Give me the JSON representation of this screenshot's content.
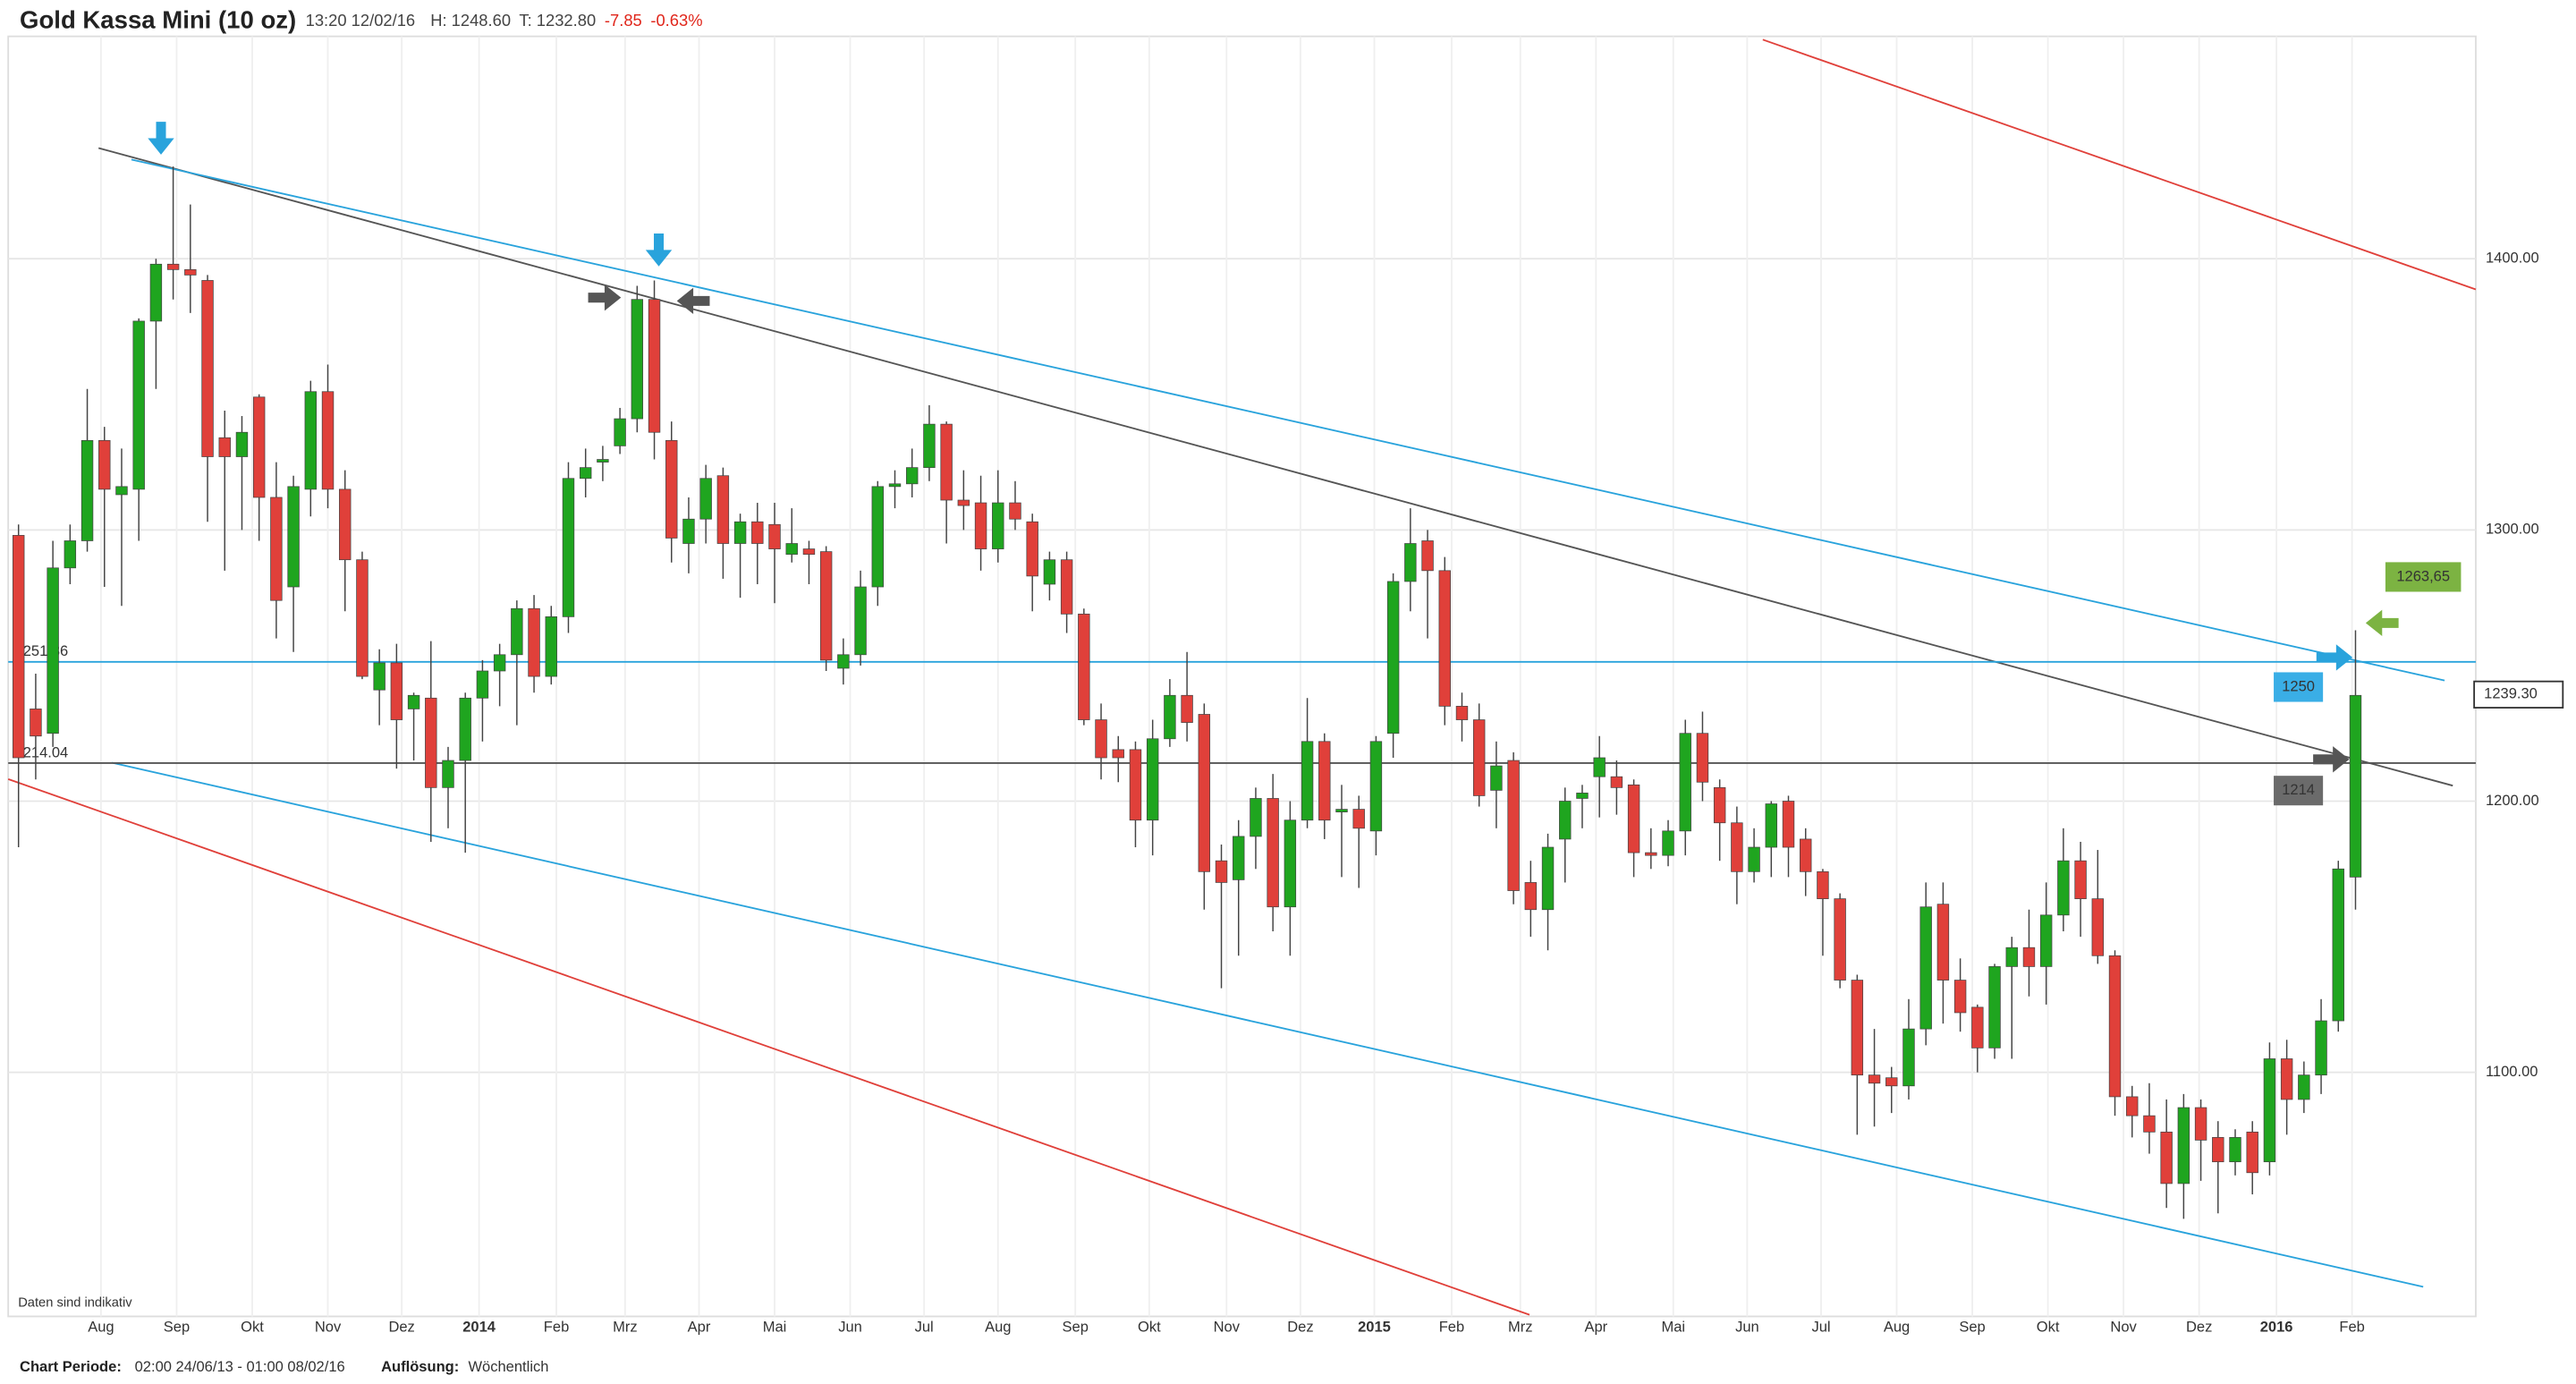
{
  "chart_data": {
    "type": "candlestick",
    "title": "Gold Kassa Mini (10 oz)",
    "header": {
      "time": "13:20 12/02/16",
      "high": "H: 1248.60",
      "low": "T: 1232.80",
      "change": "-7.85",
      "change_pct": "-0.63%"
    },
    "footer": {
      "period_label": "Chart Periode:",
      "period": "02:00 24/06/13 - 01:00 08/02/16",
      "resolution_label": "Auflösung:",
      "resolution": "Wöchentlich"
    },
    "note": "Daten sind indikativ",
    "up_color": "#1fa51f",
    "down_color": "#e0403a",
    "grid": true,
    "ylim": [
      1010,
      1482
    ],
    "yticks": [
      {
        "value": 1100,
        "label": "1100.00"
      },
      {
        "value": 1200,
        "label": "1200.00"
      },
      {
        "value": 1300,
        "label": "1300.00"
      },
      {
        "value": 1400,
        "label": "1400.00"
      }
    ],
    "xlim": [
      -0.6,
      143
    ],
    "xticks": [
      {
        "value": 4.8,
        "label": "Aug"
      },
      {
        "value": 9.2,
        "label": "Sep"
      },
      {
        "value": 13.6,
        "label": "Okt"
      },
      {
        "value": 18.0,
        "label": "Nov"
      },
      {
        "value": 22.3,
        "label": "Dez"
      },
      {
        "value": 26.8,
        "label": "2014"
      },
      {
        "value": 31.3,
        "label": "Feb"
      },
      {
        "value": 35.3,
        "label": "Mrz"
      },
      {
        "value": 39.6,
        "label": "Apr"
      },
      {
        "value": 44.0,
        "label": "Mai"
      },
      {
        "value": 48.4,
        "label": "Jun"
      },
      {
        "value": 52.7,
        "label": "Jul"
      },
      {
        "value": 57.0,
        "label": "Aug"
      },
      {
        "value": 61.5,
        "label": "Sep"
      },
      {
        "value": 65.8,
        "label": "Okt"
      },
      {
        "value": 70.3,
        "label": "Nov"
      },
      {
        "value": 74.6,
        "label": "Dez"
      },
      {
        "value": 78.9,
        "label": "2015"
      },
      {
        "value": 83.4,
        "label": "Feb"
      },
      {
        "value": 87.4,
        "label": "Mrz"
      },
      {
        "value": 91.8,
        "label": "Apr"
      },
      {
        "value": 96.3,
        "label": "Mai"
      },
      {
        "value": 100.6,
        "label": "Jun"
      },
      {
        "value": 104.9,
        "label": "Jul"
      },
      {
        "value": 109.3,
        "label": "Aug"
      },
      {
        "value": 113.7,
        "label": "Sep"
      },
      {
        "value": 118.1,
        "label": "Okt"
      },
      {
        "value": 122.5,
        "label": "Nov"
      },
      {
        "value": 126.9,
        "label": "Dez"
      },
      {
        "value": 131.4,
        "label": "2016"
      },
      {
        "value": 135.8,
        "label": "Feb"
      }
    ],
    "ohlc": [
      [
        1298,
        1302,
        1183,
        1216
      ],
      [
        1234,
        1247,
        1208,
        1224
      ],
      [
        1225,
        1296,
        1220,
        1286
      ],
      [
        1286,
        1302,
        1280,
        1296
      ],
      [
        1296,
        1352,
        1292,
        1333
      ],
      [
        1333,
        1338,
        1279,
        1315
      ],
      [
        1313,
        1330,
        1272,
        1316
      ],
      [
        1315,
        1378,
        1296,
        1377
      ],
      [
        1377,
        1400,
        1352,
        1398
      ],
      [
        1398,
        1434,
        1385,
        1396
      ],
      [
        1396,
        1420,
        1380,
        1394
      ],
      [
        1392,
        1394,
        1303,
        1327
      ],
      [
        1334,
        1344,
        1285,
        1327
      ],
      [
        1327,
        1342,
        1300,
        1336
      ],
      [
        1349,
        1350,
        1296,
        1312
      ],
      [
        1312,
        1325,
        1260,
        1274
      ],
      [
        1279,
        1320,
        1255,
        1316
      ],
      [
        1315,
        1355,
        1305,
        1351
      ],
      [
        1351,
        1361,
        1308,
        1315
      ],
      [
        1315,
        1322,
        1270,
        1289
      ],
      [
        1289,
        1292,
        1245,
        1246
      ],
      [
        1241,
        1256,
        1228,
        1251
      ],
      [
        1251,
        1258,
        1212,
        1230
      ],
      [
        1234,
        1240,
        1215,
        1239
      ],
      [
        1238,
        1259,
        1185,
        1205
      ],
      [
        1205,
        1220,
        1190,
        1215
      ],
      [
        1215,
        1240,
        1181,
        1238
      ],
      [
        1238,
        1252,
        1222,
        1248
      ],
      [
        1248,
        1258,
        1235,
        1254
      ],
      [
        1254,
        1274,
        1228,
        1271
      ],
      [
        1271,
        1276,
        1240,
        1246
      ],
      [
        1246,
        1272,
        1243,
        1268
      ],
      [
        1268,
        1325,
        1262,
        1319
      ],
      [
        1319,
        1330,
        1312,
        1323
      ],
      [
        1325,
        1331,
        1318,
        1326
      ],
      [
        1331,
        1345,
        1328,
        1341
      ],
      [
        1341,
        1390,
        1336,
        1385
      ],
      [
        1385,
        1392,
        1326,
        1336
      ],
      [
        1333,
        1340,
        1288,
        1297
      ],
      [
        1295,
        1312,
        1284,
        1304
      ],
      [
        1304,
        1324,
        1295,
        1319
      ],
      [
        1320,
        1323,
        1282,
        1295
      ],
      [
        1295,
        1306,
        1275,
        1303
      ],
      [
        1303,
        1310,
        1280,
        1295
      ],
      [
        1302,
        1310,
        1273,
        1293
      ],
      [
        1291,
        1308,
        1288,
        1295
      ],
      [
        1293,
        1296,
        1280,
        1291
      ],
      [
        1292,
        1294,
        1248,
        1252
      ],
      [
        1249,
        1260,
        1243,
        1254
      ],
      [
        1254,
        1285,
        1250,
        1279
      ],
      [
        1279,
        1318,
        1272,
        1316
      ],
      [
        1316,
        1322,
        1308,
        1317
      ],
      [
        1317,
        1330,
        1312,
        1323
      ],
      [
        1323,
        1346,
        1318,
        1339
      ],
      [
        1339,
        1340,
        1295,
        1311
      ],
      [
        1311,
        1322,
        1300,
        1309
      ],
      [
        1310,
        1320,
        1285,
        1293
      ],
      [
        1293,
        1322,
        1288,
        1310
      ],
      [
        1310,
        1318,
        1300,
        1304
      ],
      [
        1303,
        1306,
        1270,
        1283
      ],
      [
        1280,
        1292,
        1274,
        1289
      ],
      [
        1289,
        1292,
        1262,
        1269
      ],
      [
        1269,
        1271,
        1228,
        1230
      ],
      [
        1230,
        1236,
        1208,
        1216
      ],
      [
        1219,
        1224,
        1207,
        1216
      ],
      [
        1219,
        1222,
        1183,
        1193
      ],
      [
        1193,
        1230,
        1180,
        1223
      ],
      [
        1223,
        1245,
        1220,
        1239
      ],
      [
        1239,
        1255,
        1222,
        1229
      ],
      [
        1232,
        1236,
        1160,
        1174
      ],
      [
        1178,
        1184,
        1131,
        1170
      ],
      [
        1171,
        1193,
        1143,
        1187
      ],
      [
        1187,
        1205,
        1175,
        1201
      ],
      [
        1201,
        1210,
        1152,
        1161
      ],
      [
        1161,
        1200,
        1143,
        1193
      ],
      [
        1193,
        1238,
        1190,
        1222
      ],
      [
        1222,
        1225,
        1186,
        1193
      ],
      [
        1196,
        1206,
        1172,
        1197
      ],
      [
        1197,
        1202,
        1168,
        1190
      ],
      [
        1189,
        1224,
        1180,
        1222
      ],
      [
        1225,
        1284,
        1216,
        1281
      ],
      [
        1281,
        1308,
        1270,
        1295
      ],
      [
        1296,
        1300,
        1260,
        1285
      ],
      [
        1285,
        1290,
        1228,
        1235
      ],
      [
        1235,
        1240,
        1222,
        1230
      ],
      [
        1230,
        1236,
        1198,
        1202
      ],
      [
        1204,
        1222,
        1190,
        1213
      ],
      [
        1215,
        1218,
        1162,
        1167
      ],
      [
        1170,
        1178,
        1150,
        1160
      ],
      [
        1160,
        1188,
        1145,
        1183
      ],
      [
        1186,
        1205,
        1170,
        1200
      ],
      [
        1201,
        1206,
        1190,
        1203
      ],
      [
        1209,
        1224,
        1194,
        1216
      ],
      [
        1209,
        1215,
        1195,
        1205
      ],
      [
        1206,
        1208,
        1172,
        1181
      ],
      [
        1181,
        1190,
        1175,
        1180
      ],
      [
        1180,
        1193,
        1176,
        1189
      ],
      [
        1189,
        1230,
        1180,
        1225
      ],
      [
        1225,
        1233,
        1200,
        1207
      ],
      [
        1205,
        1208,
        1178,
        1192
      ],
      [
        1192,
        1198,
        1162,
        1174
      ],
      [
        1174,
        1190,
        1170,
        1183
      ],
      [
        1183,
        1200,
        1172,
        1199
      ],
      [
        1200,
        1202,
        1172,
        1183
      ],
      [
        1186,
        1190,
        1165,
        1174
      ],
      [
        1174,
        1175,
        1143,
        1164
      ],
      [
        1164,
        1166,
        1131,
        1134
      ],
      [
        1134,
        1136,
        1077,
        1099
      ],
      [
        1099,
        1116,
        1080,
        1096
      ],
      [
        1098,
        1102,
        1085,
        1095
      ],
      [
        1095,
        1127,
        1090,
        1116
      ],
      [
        1116,
        1170,
        1110,
        1161
      ],
      [
        1162,
        1170,
        1118,
        1134
      ],
      [
        1134,
        1142,
        1115,
        1122
      ],
      [
        1124,
        1125,
        1100,
        1109
      ],
      [
        1109,
        1140,
        1105,
        1139
      ],
      [
        1139,
        1150,
        1105,
        1146
      ],
      [
        1146,
        1160,
        1128,
        1139
      ],
      [
        1139,
        1170,
        1125,
        1158
      ],
      [
        1158,
        1190,
        1152,
        1178
      ],
      [
        1178,
        1185,
        1150,
        1164
      ],
      [
        1164,
        1182,
        1140,
        1143
      ],
      [
        1143,
        1145,
        1084,
        1091
      ],
      [
        1091,
        1095,
        1076,
        1084
      ],
      [
        1084,
        1096,
        1070,
        1078
      ],
      [
        1078,
        1090,
        1050,
        1059
      ],
      [
        1059,
        1092,
        1046,
        1087
      ],
      [
        1087,
        1090,
        1060,
        1075
      ],
      [
        1076,
        1082,
        1048,
        1067
      ],
      [
        1067,
        1079,
        1062,
        1076
      ],
      [
        1078,
        1082,
        1055,
        1063
      ],
      [
        1067,
        1111,
        1062,
        1105
      ],
      [
        1105,
        1112,
        1077,
        1090
      ],
      [
        1090,
        1104,
        1085,
        1099
      ],
      [
        1099,
        1127,
        1092,
        1119
      ],
      [
        1119,
        1178,
        1115,
        1175
      ],
      [
        1172,
        1263,
        1160,
        1239
      ]
    ],
    "hlines": [
      {
        "value": 1251.36,
        "color": "#29a3dc"
      },
      {
        "value": 1214.04,
        "color": "#555555"
      }
    ],
    "last_price": {
      "value": 1239.3,
      "label": "1239.30"
    },
    "tags": [
      {
        "label": "1263,65",
        "color": "#7cb342"
      },
      {
        "label": "1250",
        "color": "#3aaee6"
      },
      {
        "label": "1214",
        "color": "#6b6b6b"
      }
    ]
  }
}
